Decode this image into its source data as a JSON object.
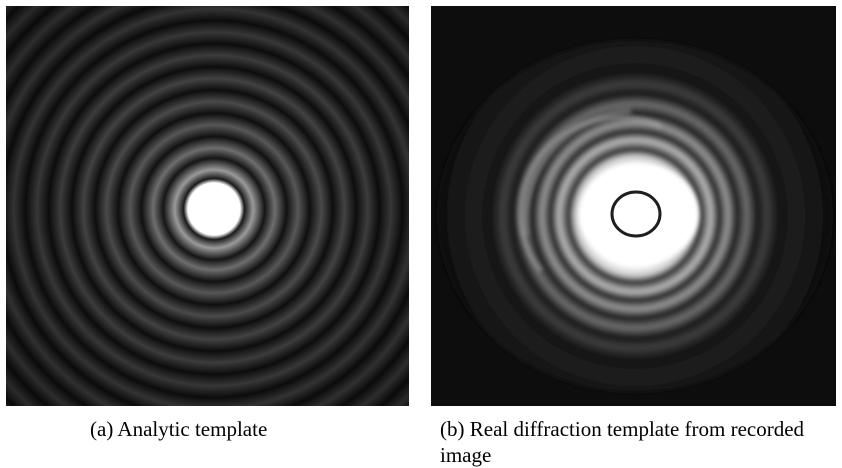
{
  "figure": {
    "panel_a": {
      "caption": "(a)  Analytic template"
    },
    "panel_b": {
      "caption": "(b)  Real diffraction template from recorded image"
    }
  }
}
